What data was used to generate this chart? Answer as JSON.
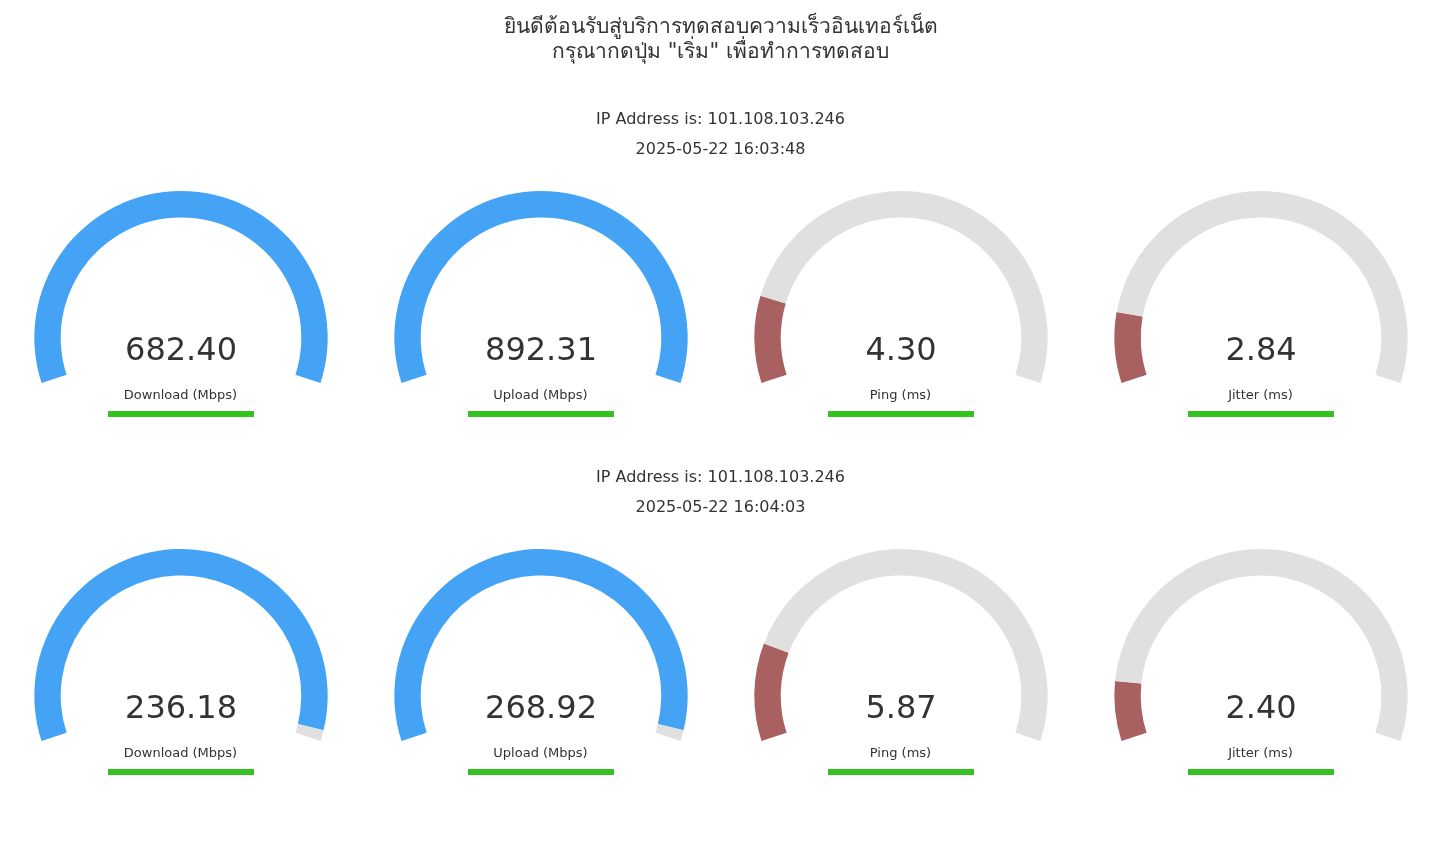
{
  "chart_data": [
    {
      "type": "other",
      "title": "ยินดีต้อนรับสู่บริการทดสอบความเร็วอินเทอร์เน็ต",
      "subtitle": "กรุณากดปุ่ม \"เริ่ม\" เพื่อทำการทดสอบ"
    },
    {
      "type": "other",
      "annotations": [
        "IP Address is: 101.108.103.246",
        "2025-05-22 16:03:48"
      ]
    },
    {
      "type": "pie",
      "categories": [
        null,
        null
      ],
      "values": [
        100,
        0
      ],
      "colors": [
        "#45a3f5",
        "#e0e0e0"
      ],
      "annotations": [
        "682.40"
      ],
      "xlabel": "Download (Mbps)"
    },
    {
      "type": "pie",
      "categories": [
        null,
        null
      ],
      "values": [
        100,
        0
      ],
      "colors": [
        "#45a3f5",
        "#e0e0e0"
      ],
      "annotations": [
        "892.31"
      ],
      "xlabel": "Upload (Mbps)"
    },
    {
      "type": "donut",
      "categories": [
        null,
        null
      ],
      "values": [
        16,
        84
      ],
      "colors": [
        "#a86060",
        "#e0e0e0"
      ],
      "annotations": [
        "4.30"
      ],
      "xlabel": "Ping (ms)"
    },
    {
      "type": "donut",
      "categories": [
        null,
        null
      ],
      "values": [
        13,
        87
      ],
      "colors": [
        "#a86060",
        "#e0e0e0"
      ],
      "annotations": [
        "2.84"
      ],
      "xlabel": "Jitter (ms)"
    },
    {
      "type": "other",
      "annotations": [
        "IP Address is: 101.108.103.246",
        "2025-05-22 16:04:03"
      ]
    },
    {
      "type": "donut",
      "categories": [
        null,
        null
      ],
      "values": [
        98,
        2
      ],
      "colors": [
        "#45a3f5",
        "#e0e0e0"
      ],
      "annotations": [
        "236.18"
      ],
      "xlabel": "Download (Mbps)"
    },
    {
      "type": "donut",
      "categories": [
        null,
        null
      ],
      "values": [
        98,
        2
      ],
      "colors": [
        "#45a3f5",
        "#e0e0e0"
      ],
      "annotations": [
        "268.92"
      ],
      "xlabel": "Upload (Mbps)"
    },
    {
      "type": "donut",
      "categories": [
        null,
        null
      ],
      "values": [
        18,
        82
      ],
      "colors": [
        "#a86060",
        "#e0e0e0"
      ],
      "annotations": [
        "5.87"
      ],
      "xlabel": "Ping (ms)"
    },
    {
      "type": "donut",
      "categories": [
        null,
        null
      ],
      "values": [
        11,
        89
      ],
      "colors": [
        "#a86060",
        "#e0e0e0"
      ],
      "annotations": [
        "2.40"
      ],
      "xlabel": "Jitter (ms)"
    }
  ]
}
